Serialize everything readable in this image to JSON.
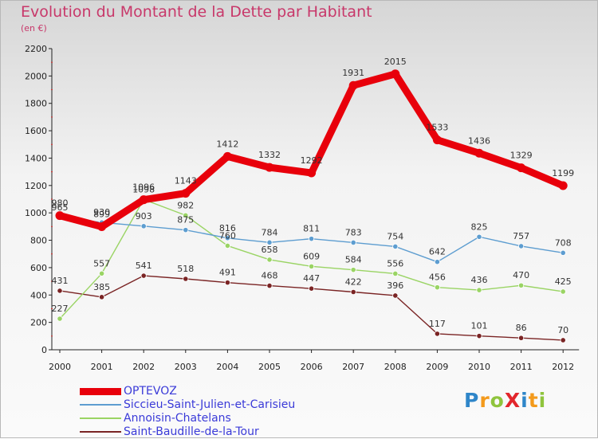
{
  "title": "Evolution du Montant de la Dette par Habitant",
  "subtitle": "(en €)",
  "logo": {
    "text": "ProXiti",
    "letters": [
      {
        "ch": "P",
        "color": "#2f86c9"
      },
      {
        "ch": "r",
        "color": "#f39a1c"
      },
      {
        "ch": "o",
        "color": "#8fc43d"
      },
      {
        "ch": "X",
        "color": "#e2262c"
      },
      {
        "ch": "i",
        "color": "#2f86c9"
      },
      {
        "ch": "t",
        "color": "#f39a1c"
      },
      {
        "ch": "i",
        "color": "#8fc43d"
      }
    ]
  },
  "chart_data": {
    "type": "line",
    "title": "Evolution du Montant de la Dette par Habitant",
    "subtitle": "(en €)",
    "x": [
      2000,
      2001,
      2002,
      2003,
      2004,
      2005,
      2006,
      2007,
      2008,
      2009,
      2010,
      2011,
      2012
    ],
    "ylim": [
      0,
      2200
    ],
    "yticks": [
      0,
      200,
      400,
      600,
      800,
      1000,
      1200,
      1400,
      1600,
      1800,
      2000,
      2200
    ],
    "grid": false,
    "legend": "bottom-left",
    "series": [
      {
        "name": "OPTEVOZ",
        "color": "#e8000b",
        "values": [
          980,
          899,
          1096,
          1143,
          1412,
          1332,
          1292,
          1931,
          2015,
          1533,
          1436,
          1329,
          1199
        ]
      },
      {
        "name": "Siccieu-Saint-Julien-et-Carisieu",
        "color": "#5d9dd0",
        "values": [
          965,
          930,
          903,
          875,
          816,
          784,
          811,
          783,
          754,
          642,
          825,
          757,
          708
        ]
      },
      {
        "name": "Annoisin-Chatelans",
        "color": "#9ad464",
        "values": [
          227,
          557,
          1098,
          982,
          760,
          658,
          609,
          584,
          556,
          456,
          436,
          470,
          425
        ]
      },
      {
        "name": "Saint-Baudille-de-la-Tour",
        "color": "#7a2424",
        "values": [
          431,
          385,
          541,
          518,
          491,
          468,
          447,
          422,
          396,
          117,
          101,
          86,
          70
        ]
      }
    ]
  }
}
